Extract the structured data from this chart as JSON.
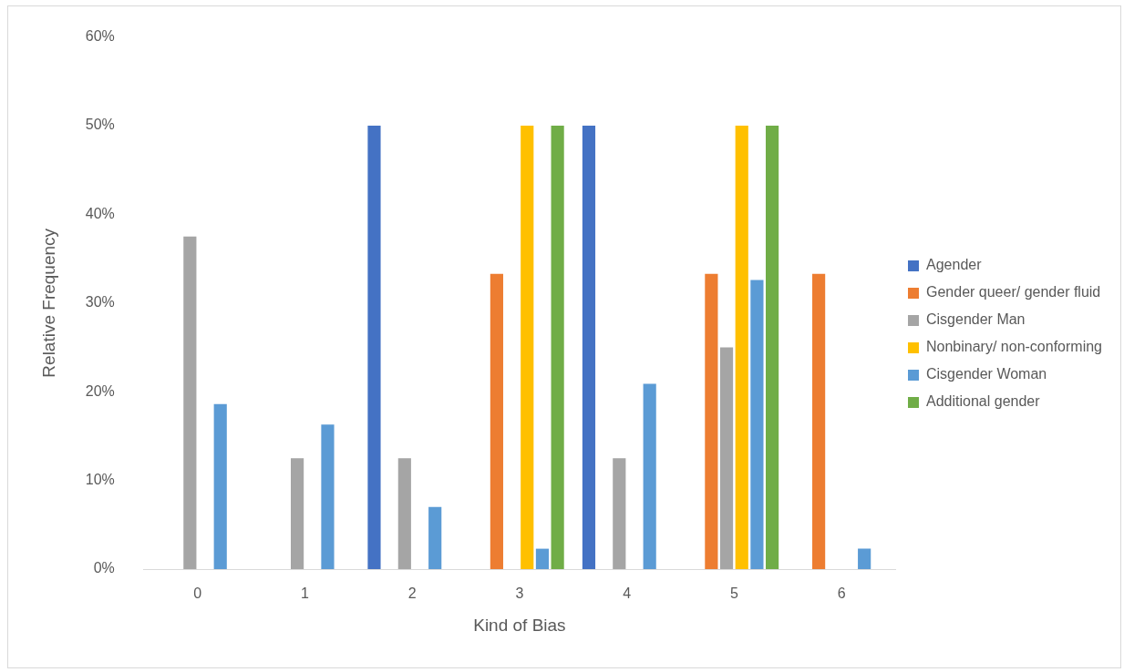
{
  "chart_data": {
    "type": "bar",
    "xlabel": "Kind of Bias",
    "ylabel": "Relative Frequency",
    "categories": [
      "0",
      "1",
      "2",
      "3",
      "4",
      "5",
      "6"
    ],
    "series": [
      {
        "name": "Agender",
        "color": "#4472c4",
        "values": [
          0,
          0,
          50,
          0,
          50,
          0,
          0
        ]
      },
      {
        "name": "Gender queer/ gender fluid",
        "color": "#ed7d31",
        "values": [
          0,
          0,
          0,
          33.3,
          0,
          33.3,
          33.3
        ]
      },
      {
        "name": "Cisgender Man",
        "color": "#a5a5a5",
        "values": [
          37.5,
          12.5,
          12.5,
          0,
          12.5,
          25,
          0
        ]
      },
      {
        "name": "Nonbinary/ non-conforming",
        "color": "#ffc000",
        "values": [
          0,
          0,
          0,
          50,
          0,
          50,
          0
        ]
      },
      {
        "name": "Cisgender Woman",
        "color": "#5b9bd5",
        "values": [
          18.6,
          16.3,
          7.0,
          2.3,
          20.9,
          32.6,
          2.3
        ]
      },
      {
        "name": "Additional gender",
        "color": "#70ad47",
        "values": [
          0,
          0,
          0,
          50,
          0,
          50,
          0
        ]
      }
    ],
    "ylim": [
      0,
      60
    ],
    "yticks": [
      {
        "value": 0,
        "label": "0%"
      },
      {
        "value": 10,
        "label": "10%"
      },
      {
        "value": 20,
        "label": "20%"
      },
      {
        "value": 30,
        "label": "30%"
      },
      {
        "value": 40,
        "label": "40%"
      },
      {
        "value": 50,
        "label": "50%"
      },
      {
        "value": 60,
        "label": "60%"
      }
    ],
    "grid": false,
    "legend": "right"
  }
}
